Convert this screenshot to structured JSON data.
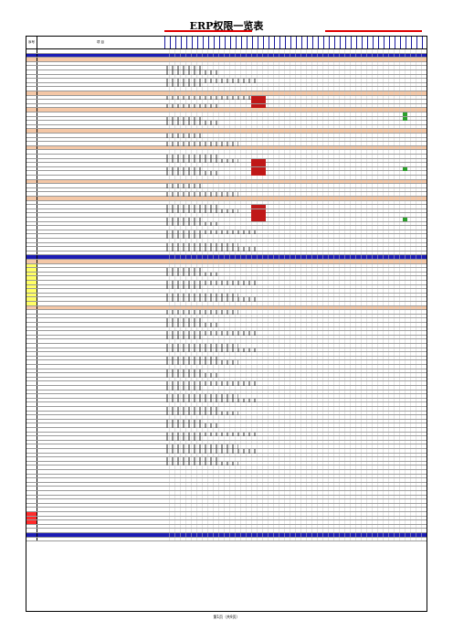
{
  "title": "ERP权限一览表",
  "header": {
    "no": "序号",
    "item": "项  目"
  },
  "footer": "第1页（共9页）",
  "rows_count": 117
}
